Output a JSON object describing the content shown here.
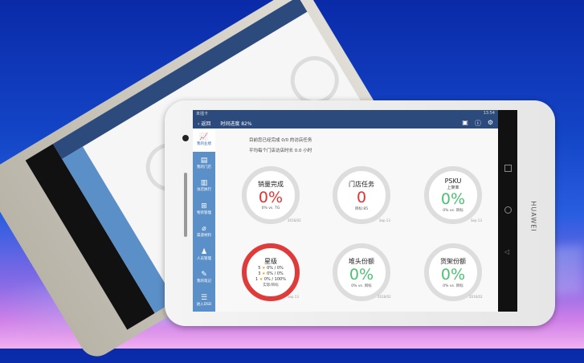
{
  "device": {
    "brand": "HUAWEI"
  },
  "status_bar": {
    "carrier": "未插卡",
    "time": "13:54"
  },
  "header": {
    "back_label": "返回",
    "time_progress": "时间进度 82%",
    "icons": [
      "message-icon",
      "help-icon",
      "settings-icon"
    ]
  },
  "sidebar": {
    "items": [
      {
        "label": "我的业绩",
        "icon": "chart-icon",
        "active": true
      },
      {
        "label": "我的门店",
        "icon": "store-icon"
      },
      {
        "label": "访店执行",
        "icon": "clipboard-icon"
      },
      {
        "label": "物资管理",
        "icon": "grid-icon"
      },
      {
        "label": "渠道材料",
        "icon": "paperclip-icon"
      },
      {
        "label": "人员管理",
        "icon": "people-icon"
      },
      {
        "label": "我的笔记",
        "icon": "note-icon"
      },
      {
        "label": "进入DSD",
        "icon": "list-icon"
      }
    ]
  },
  "summary": {
    "line1": "目前您已经完成 0/0 的访店任务",
    "line2": "平均每个门店访店时长 0.0 小时"
  },
  "cards": [
    {
      "title": "销量完成",
      "value": "0%",
      "sub": "0% vs. TG",
      "date": "2016/02"
    },
    {
      "title": "门店任务",
      "value": "0",
      "sub": "目标:85",
      "date": "Sep 13"
    },
    {
      "title": "PSKU",
      "subtitle": "上架率",
      "value": "0%",
      "sub": "0% vs. 目标",
      "date": "Sep 13"
    },
    {
      "title": "星级",
      "stars": [
        {
          "n": "5",
          "v": "0% / 0%"
        },
        {
          "n": "3",
          "v": "0% / 0%"
        },
        {
          "n": "1",
          "v": "0% / 100%"
        }
      ],
      "sub": "实际/目标",
      "date": "Sep 13"
    },
    {
      "title": "堆头份额",
      "value": "0%",
      "sub": "0% vs. 目标",
      "date": "2016/02"
    },
    {
      "title": "货架份额",
      "value": "0%",
      "sub": "0% vs. 目标",
      "date": "2016/02"
    }
  ],
  "colors": {
    "header": "#2c4a7c",
    "sidebar": "#5b8fc7",
    "red": "#e83030",
    "green": "#4cc070"
  }
}
